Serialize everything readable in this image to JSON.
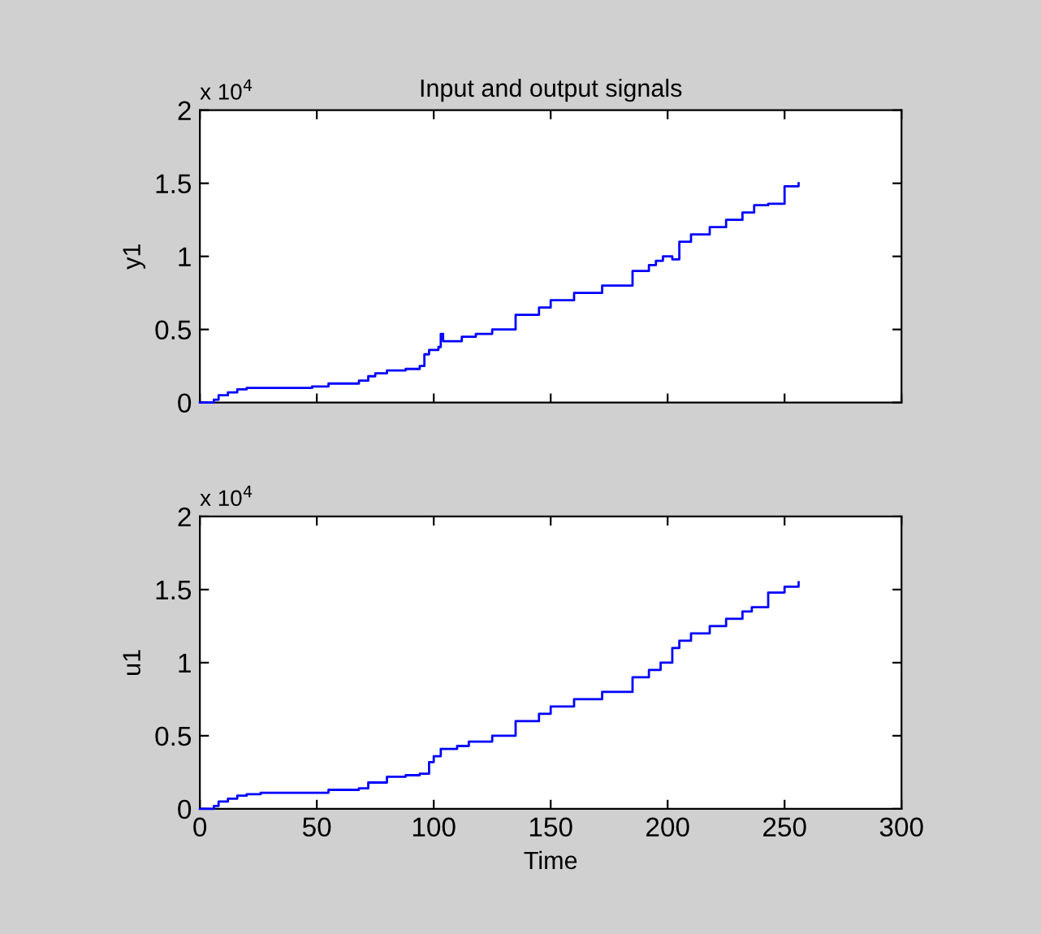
{
  "chart_data": [
    {
      "type": "step",
      "title": "Input and output signals",
      "ylabel": "y1",
      "annotations": [
        "x 10$^{4}$"
      ],
      "tick_labels": "y",
      "grid": false,
      "xlim": [
        0,
        300
      ],
      "xticks": [
        {
          "value": 0,
          "label": null
        },
        {
          "value": 50,
          "label": null
        },
        {
          "value": 100,
          "label": null
        },
        {
          "value": 150,
          "label": null
        },
        {
          "value": 200,
          "label": null
        },
        {
          "value": 250,
          "label": null
        },
        {
          "value": 300,
          "label": null
        }
      ],
      "ylim": [
        0,
        2
      ],
      "yticks": [
        0,
        0.5,
        1,
        1.5,
        2
      ],
      "series": [
        {
          "color": "#0000ff",
          "x": [
            0,
            6,
            8,
            12,
            16,
            20,
            30,
            48,
            55,
            68,
            72,
            75,
            80,
            88,
            94,
            96,
            98,
            102,
            103,
            104,
            110,
            112,
            118,
            125,
            135,
            145,
            150,
            160,
            172,
            185,
            192,
            195,
            198,
            202,
            205,
            210,
            218,
            225,
            232,
            237,
            243,
            250,
            256
          ],
          "values": [
            0,
            0.02,
            0.05,
            0.07,
            0.09,
            0.1,
            0.1,
            0.11,
            0.13,
            0.15,
            0.18,
            0.2,
            0.22,
            0.23,
            0.25,
            0.33,
            0.36,
            0.38,
            0.47,
            0.42,
            0.42,
            0.45,
            0.47,
            0.5,
            0.6,
            0.65,
            0.7,
            0.75,
            0.8,
            0.9,
            0.94,
            0.97,
            1.0,
            0.98,
            1.1,
            1.15,
            1.2,
            1.25,
            1.3,
            1.35,
            1.36,
            1.48,
            1.5
          ]
        }
      ]
    },
    {
      "type": "step",
      "xlabel": "Time",
      "ylabel": "u1",
      "annotations": [
        "x 10$^{4}$"
      ],
      "grid": false,
      "xlim": [
        0,
        300
      ],
      "xticks": [
        0,
        50,
        100,
        150,
        200,
        250,
        300
      ],
      "ylim": [
        0,
        2
      ],
      "yticks": [
        0,
        0.5,
        1,
        1.5,
        2
      ],
      "series": [
        {
          "color": "#0000ff",
          "x": [
            0,
            6,
            8,
            12,
            16,
            20,
            26,
            48,
            55,
            68,
            72,
            80,
            88,
            94,
            98,
            100,
            103,
            110,
            115,
            125,
            135,
            145,
            150,
            160,
            172,
            185,
            192,
            197,
            202,
            205,
            210,
            218,
            225,
            232,
            236,
            243,
            250,
            256
          ],
          "values": [
            0,
            0.02,
            0.05,
            0.07,
            0.09,
            0.1,
            0.11,
            0.11,
            0.13,
            0.14,
            0.18,
            0.22,
            0.23,
            0.24,
            0.32,
            0.36,
            0.41,
            0.43,
            0.46,
            0.5,
            0.6,
            0.65,
            0.7,
            0.75,
            0.8,
            0.9,
            0.95,
            1.0,
            1.1,
            1.15,
            1.2,
            1.25,
            1.3,
            1.35,
            1.38,
            1.48,
            1.52,
            1.55
          ]
        }
      ]
    }
  ]
}
